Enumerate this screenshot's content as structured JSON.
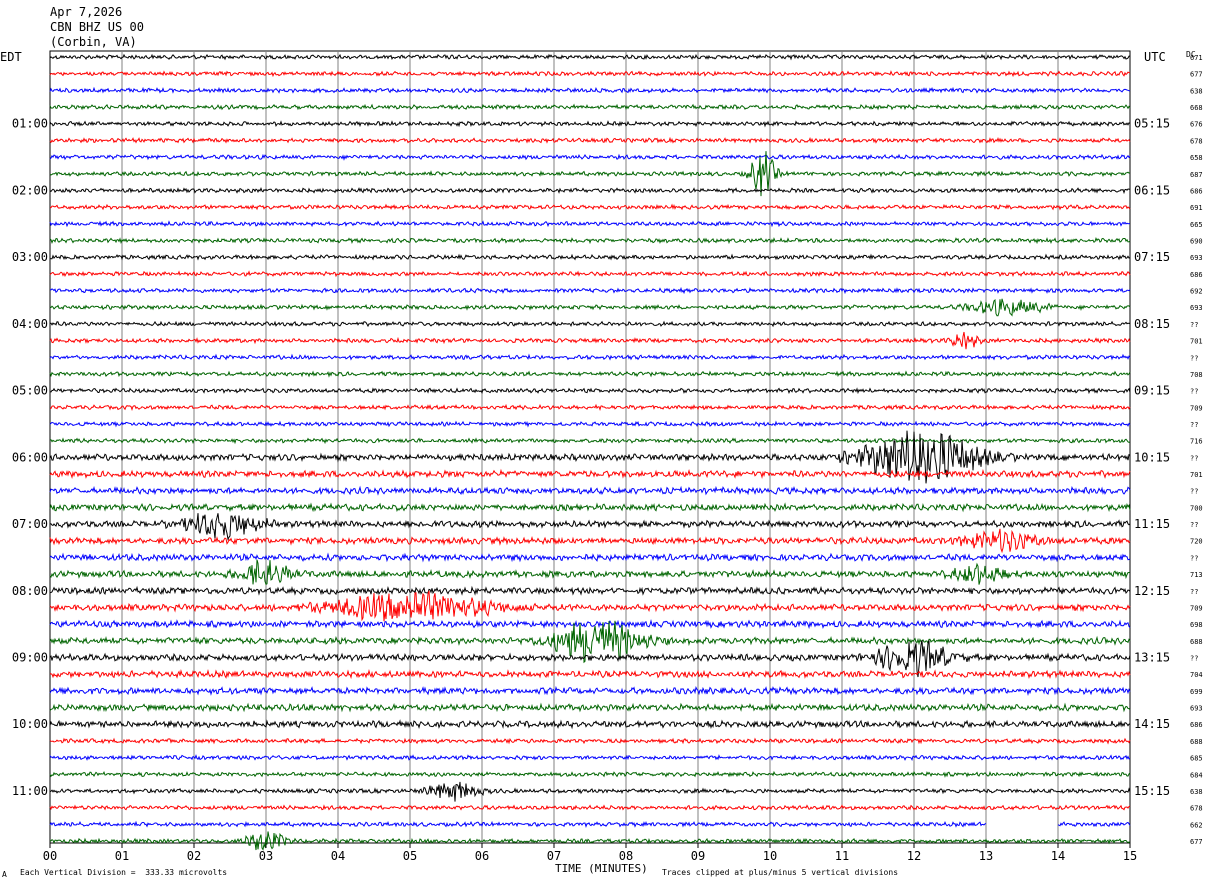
{
  "header": {
    "date": "Apr 7,2026",
    "station": "CBN BHZ US 00",
    "location": "(Corbin, VA)"
  },
  "left_zone": "EDT",
  "right_zone": "UTC",
  "dc_label": "DC",
  "footer": {
    "scale": "Each Vertical Division =  333.33 microvolts",
    "xaxis_title": "TIME (MINUTES)",
    "clip_note": "Traces clipped at plus/minus 5 vertical divisions",
    "mark": "A"
  },
  "colors": {
    "cycle": [
      "#000000",
      "#ff0000",
      "#0000ff",
      "#006400"
    ],
    "grid": "#808080"
  },
  "chart_data": {
    "type": "line",
    "subtype": "helicorder",
    "xlabel": "TIME (MINUTES)",
    "xlim": [
      0,
      15
    ],
    "x_ticks": [
      "00",
      "01",
      "02",
      "03",
      "04",
      "05",
      "06",
      "07",
      "08",
      "09",
      "10",
      "11",
      "12",
      "13",
      "14",
      "15"
    ],
    "rows": 48,
    "row_minutes": 15,
    "left_labels": [
      "01:00",
      "02:00",
      "03:00",
      "04:00",
      "05:00",
      "06:00",
      "07:00",
      "08:00",
      "09:00",
      "10:00",
      "11:00"
    ],
    "right_labels": [
      "05:15",
      "06:15",
      "07:15",
      "08:15",
      "09:15",
      "10:15",
      "11:15",
      "12:15",
      "13:15",
      "14:15",
      "15:15"
    ],
    "dc_offsets": [
      "671",
      "677",
      "638",
      "668",
      "676",
      "678",
      "658",
      "687",
      "686",
      "691",
      "665",
      "690",
      "693",
      "686",
      "692",
      "693",
      "??",
      "701",
      "??",
      "708",
      "??",
      "709",
      "??",
      "716",
      "??",
      "701",
      "??",
      "700",
      "??",
      "720",
      "??",
      "713",
      "??",
      "709",
      "698",
      "688",
      "??",
      "704",
      "699",
      "693",
      "686",
      "688",
      "685",
      "684",
      "638",
      "678",
      "662",
      "677"
    ],
    "amplitude_scale_microvolts": 333.33,
    "events": [
      {
        "row": 7,
        "minute": 9.9,
        "amp": 3.0,
        "dur": 0.4
      },
      {
        "row": 15,
        "minute": 13.3,
        "amp": 1.0,
        "dur": 1.2
      },
      {
        "row": 17,
        "minute": 12.7,
        "amp": 1.2,
        "dur": 0.4
      },
      {
        "row": 24,
        "minute": 12.1,
        "amp": 4.0,
        "dur": 1.8
      },
      {
        "row": 28,
        "minute": 2.4,
        "amp": 1.8,
        "dur": 1.2
      },
      {
        "row": 29,
        "minute": 13.2,
        "amp": 1.2,
        "dur": 1.2
      },
      {
        "row": 31,
        "minute": 3.0,
        "amp": 1.8,
        "dur": 0.8
      },
      {
        "row": 31,
        "minute": 12.9,
        "amp": 1.2,
        "dur": 0.8
      },
      {
        "row": 33,
        "minute": 5.0,
        "amp": 2.0,
        "dur": 2.6
      },
      {
        "row": 35,
        "minute": 7.6,
        "amp": 2.8,
        "dur": 1.4
      },
      {
        "row": 36,
        "minute": 12.0,
        "amp": 2.2,
        "dur": 1.2
      },
      {
        "row": 44,
        "minute": 5.6,
        "amp": 1.4,
        "dur": 0.8
      },
      {
        "row": 47,
        "minute": 3.0,
        "amp": 1.4,
        "dur": 0.6
      }
    ],
    "gap": {
      "row": 46,
      "start_minute": 13.0,
      "end_minute": 14.0
    }
  }
}
